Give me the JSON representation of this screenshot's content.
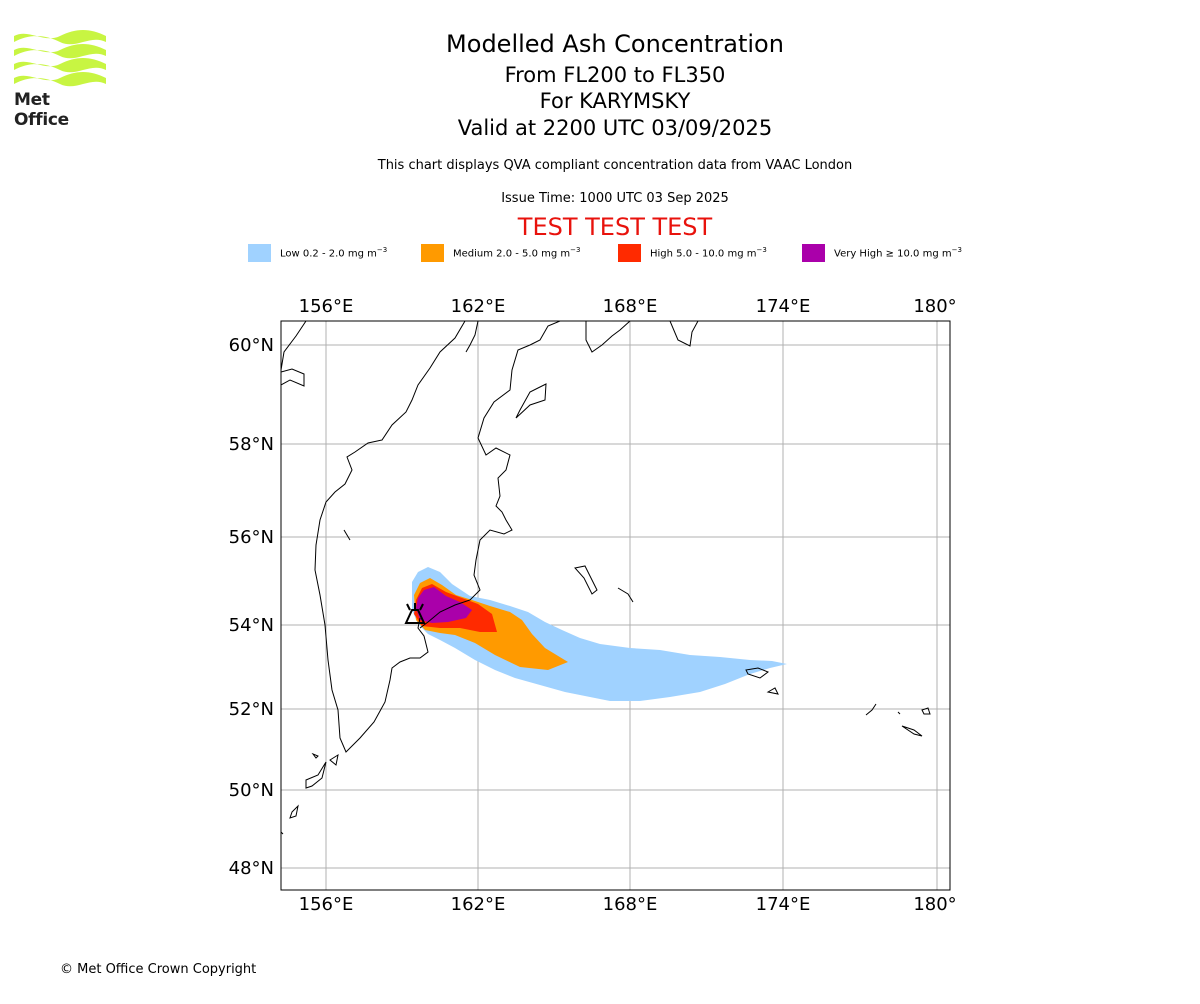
{
  "logo": {
    "text": "Met Office",
    "color": "#c8f542"
  },
  "title": {
    "line1": "Modelled Ash Concentration",
    "line2": "From FL200 to FL350",
    "line3": "For KARYMSKY",
    "line4": "Valid at 2200 UTC 03/09/2025",
    "subtitle": "This chart displays QVA compliant concentration data from VAAC London",
    "issue_time": "Issue Time: 1000 UTC 03 Sep 2025",
    "test_banner": "TEST TEST TEST",
    "test_color": "#e8120c"
  },
  "legend": [
    {
      "label": "Low 0.2 - 2.0 mg m",
      "unit_exp": "−3",
      "color": "#a0d2ff"
    },
    {
      "label": "Medium 2.0 - 5.0 mg m",
      "unit_exp": "−3",
      "color": "#ff9a00"
    },
    {
      "label": "High 5.0 - 10.0 mg m",
      "unit_exp": "−3",
      "color": "#ff2a00"
    },
    {
      "label": "Very High  ≥  10.0 mg m",
      "unit_exp": "−3",
      "color": "#aa00aa"
    }
  ],
  "map": {
    "lon_labels": [
      "156°E",
      "162°E",
      "168°E",
      "174°E",
      "180°"
    ],
    "lat_labels": [
      "60°N",
      "58°N",
      "56°N",
      "54°N",
      "52°N",
      "50°N",
      "48°N"
    ],
    "volcano_name": "KARYMSKY",
    "grid_color": "#b0b0b0"
  },
  "footer": {
    "copyright": "© Met Office Crown Copyright"
  }
}
